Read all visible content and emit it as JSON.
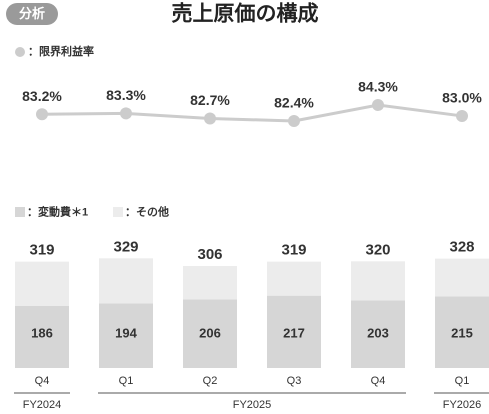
{
  "badge": "分析",
  "title": "売上原価の構成",
  "chart_data": [
    {
      "type": "line",
      "series": [
        {
          "name": "：限界利益率",
          "color": "#cccccc",
          "values": [
            83.2,
            83.3,
            82.7,
            82.4,
            84.3,
            83.0
          ],
          "value_labels": [
            "83.2%",
            "83.3%",
            "82.7%",
            "82.4%",
            "84.3%",
            "83.0%"
          ]
        }
      ],
      "ylim": [
        80,
        86
      ]
    },
    {
      "type": "stacked_bar",
      "categories": [
        "Q4",
        "Q1",
        "Q2",
        "Q3",
        "Q4",
        "Q1"
      ],
      "groups": [
        "FY2024",
        "FY2025",
        "FY2026"
      ],
      "series": [
        {
          "name": "：変動費＊1",
          "color": "#d6d6d6",
          "values": [
            186,
            194,
            206,
            217,
            203,
            215
          ]
        },
        {
          "name": "：その他",
          "color": "#ececec",
          "values": [
            133,
            135,
            100,
            102,
            117,
            113
          ]
        }
      ],
      "totals": [
        319,
        329,
        306,
        319,
        320,
        328
      ],
      "ylim": [
        0,
        330
      ]
    }
  ]
}
